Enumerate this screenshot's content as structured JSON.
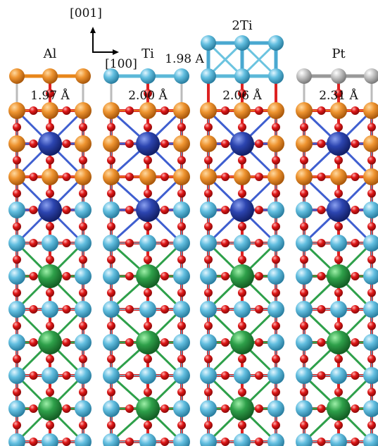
{
  "axes": {
    "vertical_label": "[001]",
    "horizontal_label": "[100]"
  },
  "panels": [
    {
      "id": "al",
      "title": "Al",
      "bond_length": "1.97 Å",
      "top_layer": [
        {
          "element": "Al",
          "color": "#e8861a"
        },
        {
          "element": "Al",
          "color": "#e8861a"
        },
        {
          "element": "Al",
          "color": "#e8861a"
        }
      ]
    },
    {
      "id": "ti",
      "title": "Ti",
      "bond_length": "2.00 Å",
      "top_layer": [
        {
          "element": "Ti",
          "color": "#5bb8d8"
        },
        {
          "element": "Ti",
          "color": "#5bb8d8"
        },
        {
          "element": "Ti",
          "color": "#5bb8d8"
        }
      ]
    },
    {
      "id": "2ti",
      "title": "2Ti",
      "bond_length": "2.06 Å",
      "extra_bond_length": "1.98 A",
      "top_layer": [
        {
          "element": "Ti",
          "color": "#5bb8d8"
        },
        {
          "element": "Ti",
          "color": "#5bb8d8"
        },
        {
          "element": "Ti",
          "color": "#5bb8d8"
        }
      ]
    },
    {
      "id": "pt",
      "title": "Pt",
      "bond_length": "2.31 Å",
      "top_layer": [
        {
          "element": "Pt",
          "color": "#bdbdbd"
        },
        {
          "element": "Pt",
          "color": "#bdbdbd"
        },
        {
          "element": "Pt",
          "color": "#bdbdbd"
        }
      ]
    }
  ],
  "colors": {
    "oxygen": "#e01818",
    "al_layer": "#e8861a",
    "cation_b_blue": "#2c45b0",
    "ti_layer": "#5bb8d8",
    "cation_a_green": "#2ea04a",
    "pt": "#bdbdbd"
  }
}
